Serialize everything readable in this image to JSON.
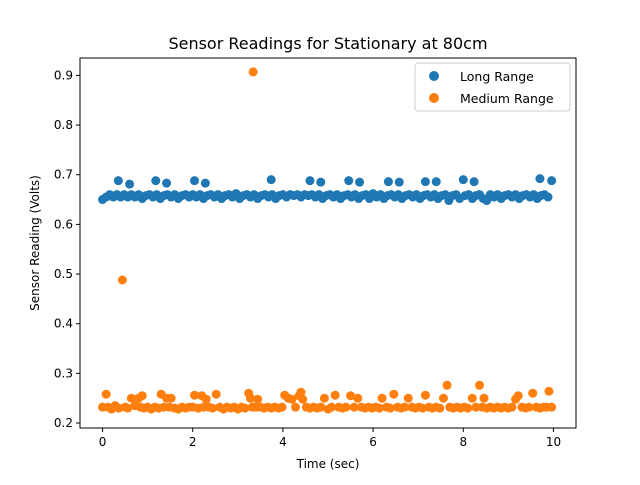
{
  "chart_data": {
    "type": "scatter",
    "title": "Sensor Readings for Stationary at 80cm",
    "xlabel": "Time (sec)",
    "ylabel": "Sensor Reading (Volts)",
    "xlim": [
      -0.5,
      10.5
    ],
    "ylim": [
      0.19,
      0.935
    ],
    "xticks": [
      0,
      2,
      4,
      6,
      8,
      10
    ],
    "yticks": [
      0.2,
      0.3,
      0.4,
      0.5,
      0.6,
      0.7,
      0.8,
      0.9
    ],
    "grid": false,
    "legend_position": "top-right",
    "series": [
      {
        "name": "Long Range",
        "color": "#1f77b4",
        "points": [
          [
            0.0,
            0.65
          ],
          [
            0.08,
            0.655
          ],
          [
            0.16,
            0.66
          ],
          [
            0.24,
            0.655
          ],
          [
            0.32,
            0.66
          ],
          [
            0.35,
            0.688
          ],
          [
            0.4,
            0.655
          ],
          [
            0.48,
            0.66
          ],
          [
            0.56,
            0.655
          ],
          [
            0.6,
            0.681
          ],
          [
            0.64,
            0.66
          ],
          [
            0.72,
            0.655
          ],
          [
            0.8,
            0.66
          ],
          [
            0.88,
            0.652
          ],
          [
            0.96,
            0.658
          ],
          [
            1.04,
            0.66
          ],
          [
            1.12,
            0.655
          ],
          [
            1.18,
            0.688
          ],
          [
            1.2,
            0.66
          ],
          [
            1.28,
            0.652
          ],
          [
            1.36,
            0.658
          ],
          [
            1.42,
            0.683
          ],
          [
            1.44,
            0.66
          ],
          [
            1.52,
            0.655
          ],
          [
            1.6,
            0.66
          ],
          [
            1.68,
            0.652
          ],
          [
            1.76,
            0.658
          ],
          [
            1.84,
            0.66
          ],
          [
            1.92,
            0.655
          ],
          [
            2.0,
            0.66
          ],
          [
            2.04,
            0.688
          ],
          [
            2.08,
            0.655
          ],
          [
            2.16,
            0.66
          ],
          [
            2.24,
            0.652
          ],
          [
            2.28,
            0.683
          ],
          [
            2.32,
            0.658
          ],
          [
            2.4,
            0.66
          ],
          [
            2.48,
            0.655
          ],
          [
            2.56,
            0.66
          ],
          [
            2.64,
            0.652
          ],
          [
            2.72,
            0.658
          ],
          [
            2.8,
            0.66
          ],
          [
            2.88,
            0.655
          ],
          [
            2.96,
            0.662
          ],
          [
            3.04,
            0.652
          ],
          [
            3.12,
            0.658
          ],
          [
            3.2,
            0.66
          ],
          [
            3.28,
            0.655
          ],
          [
            3.36,
            0.66
          ],
          [
            3.44,
            0.652
          ],
          [
            3.52,
            0.658
          ],
          [
            3.6,
            0.66
          ],
          [
            3.68,
            0.655
          ],
          [
            3.74,
            0.69
          ],
          [
            3.76,
            0.66
          ],
          [
            3.84,
            0.652
          ],
          [
            3.92,
            0.658
          ],
          [
            4.0,
            0.66
          ],
          [
            4.08,
            0.655
          ],
          [
            4.16,
            0.66
          ],
          [
            4.24,
            0.658
          ],
          [
            4.32,
            0.66
          ],
          [
            4.4,
            0.655
          ],
          [
            4.48,
            0.66
          ],
          [
            4.56,
            0.658
          ],
          [
            4.6,
            0.688
          ],
          [
            4.64,
            0.66
          ],
          [
            4.72,
            0.655
          ],
          [
            4.8,
            0.66
          ],
          [
            4.84,
            0.685
          ],
          [
            4.88,
            0.652
          ],
          [
            4.96,
            0.658
          ],
          [
            5.04,
            0.66
          ],
          [
            5.12,
            0.655
          ],
          [
            5.2,
            0.66
          ],
          [
            5.28,
            0.652
          ],
          [
            5.36,
            0.658
          ],
          [
            5.44,
            0.66
          ],
          [
            5.46,
            0.688
          ],
          [
            5.52,
            0.655
          ],
          [
            5.6,
            0.66
          ],
          [
            5.68,
            0.652
          ],
          [
            5.7,
            0.685
          ],
          [
            5.76,
            0.658
          ],
          [
            5.84,
            0.66
          ],
          [
            5.92,
            0.652
          ],
          [
            6.0,
            0.662
          ],
          [
            6.08,
            0.655
          ],
          [
            6.16,
            0.66
          ],
          [
            6.24,
            0.652
          ],
          [
            6.32,
            0.658
          ],
          [
            6.34,
            0.686
          ],
          [
            6.4,
            0.66
          ],
          [
            6.48,
            0.655
          ],
          [
            6.56,
            0.66
          ],
          [
            6.58,
            0.685
          ],
          [
            6.64,
            0.652
          ],
          [
            6.72,
            0.658
          ],
          [
            6.8,
            0.66
          ],
          [
            6.88,
            0.655
          ],
          [
            6.96,
            0.66
          ],
          [
            7.04,
            0.652
          ],
          [
            7.12,
            0.658
          ],
          [
            7.16,
            0.686
          ],
          [
            7.2,
            0.66
          ],
          [
            7.28,
            0.655
          ],
          [
            7.36,
            0.66
          ],
          [
            7.4,
            0.686
          ],
          [
            7.44,
            0.652
          ],
          [
            7.52,
            0.658
          ],
          [
            7.6,
            0.66
          ],
          [
            7.68,
            0.648
          ],
          [
            7.76,
            0.658
          ],
          [
            7.84,
            0.66
          ],
          [
            7.92,
            0.652
          ],
          [
            8.0,
            0.69
          ],
          [
            8.04,
            0.658
          ],
          [
            8.12,
            0.66
          ],
          [
            8.2,
            0.652
          ],
          [
            8.24,
            0.686
          ],
          [
            8.28,
            0.658
          ],
          [
            8.36,
            0.66
          ],
          [
            8.44,
            0.652
          ],
          [
            8.52,
            0.648
          ],
          [
            8.6,
            0.66
          ],
          [
            8.68,
            0.655
          ],
          [
            8.76,
            0.66
          ],
          [
            8.84,
            0.652
          ],
          [
            8.92,
            0.658
          ],
          [
            9.0,
            0.66
          ],
          [
            9.08,
            0.655
          ],
          [
            9.16,
            0.66
          ],
          [
            9.24,
            0.652
          ],
          [
            9.32,
            0.658
          ],
          [
            9.4,
            0.66
          ],
          [
            9.48,
            0.655
          ],
          [
            9.56,
            0.66
          ],
          [
            9.64,
            0.652
          ],
          [
            9.7,
            0.692
          ],
          [
            9.72,
            0.658
          ],
          [
            9.8,
            0.66
          ],
          [
            9.88,
            0.655
          ],
          [
            9.96,
            0.688
          ]
        ]
      },
      {
        "name": "Medium Range",
        "color": "#ff7f0e",
        "points": [
          [
            0.0,
            0.232
          ],
          [
            0.08,
            0.258
          ],
          [
            0.12,
            0.232
          ],
          [
            0.2,
            0.228
          ],
          [
            0.28,
            0.235
          ],
          [
            0.36,
            0.23
          ],
          [
            0.44,
            0.488
          ],
          [
            0.5,
            0.232
          ],
          [
            0.56,
            0.23
          ],
          [
            0.64,
            0.25
          ],
          [
            0.72,
            0.235
          ],
          [
            0.8,
            0.25
          ],
          [
            0.84,
            0.232
          ],
          [
            0.88,
            0.255
          ],
          [
            0.92,
            0.23
          ],
          [
            1.0,
            0.232
          ],
          [
            1.08,
            0.228
          ],
          [
            1.16,
            0.232
          ],
          [
            1.24,
            0.23
          ],
          [
            1.3,
            0.258
          ],
          [
            1.36,
            0.232
          ],
          [
            1.42,
            0.25
          ],
          [
            1.48,
            0.232
          ],
          [
            1.52,
            0.25
          ],
          [
            1.6,
            0.23
          ],
          [
            1.68,
            0.228
          ],
          [
            1.76,
            0.232
          ],
          [
            1.84,
            0.23
          ],
          [
            1.92,
            0.232
          ],
          [
            2.0,
            0.232
          ],
          [
            2.04,
            0.256
          ],
          [
            2.12,
            0.23
          ],
          [
            2.2,
            0.255
          ],
          [
            2.24,
            0.232
          ],
          [
            2.3,
            0.248
          ],
          [
            2.36,
            0.232
          ],
          [
            2.44,
            0.23
          ],
          [
            2.52,
            0.258
          ],
          [
            2.6,
            0.232
          ],
          [
            2.68,
            0.228
          ],
          [
            2.76,
            0.232
          ],
          [
            2.84,
            0.23
          ],
          [
            2.92,
            0.232
          ],
          [
            3.0,
            0.228
          ],
          [
            3.08,
            0.232
          ],
          [
            3.16,
            0.23
          ],
          [
            3.24,
            0.26
          ],
          [
            3.28,
            0.25
          ],
          [
            3.32,
            0.232
          ],
          [
            3.34,
            0.907
          ],
          [
            3.4,
            0.232
          ],
          [
            3.44,
            0.248
          ],
          [
            3.5,
            0.232
          ],
          [
            3.58,
            0.23
          ],
          [
            3.66,
            0.232
          ],
          [
            3.74,
            0.23
          ],
          [
            3.82,
            0.232
          ],
          [
            3.9,
            0.23
          ],
          [
            3.98,
            0.232
          ],
          [
            4.04,
            0.256
          ],
          [
            4.12,
            0.25
          ],
          [
            4.2,
            0.248
          ],
          [
            4.28,
            0.232
          ],
          [
            4.36,
            0.255
          ],
          [
            4.4,
            0.262
          ],
          [
            4.44,
            0.248
          ],
          [
            4.52,
            0.232
          ],
          [
            4.6,
            0.23
          ],
          [
            4.68,
            0.232
          ],
          [
            4.76,
            0.23
          ],
          [
            4.84,
            0.232
          ],
          [
            4.92,
            0.25
          ],
          [
            5.0,
            0.228
          ],
          [
            5.08,
            0.232
          ],
          [
            5.16,
            0.256
          ],
          [
            5.24,
            0.232
          ],
          [
            5.32,
            0.23
          ],
          [
            5.4,
            0.232
          ],
          [
            5.5,
            0.255
          ],
          [
            5.58,
            0.232
          ],
          [
            5.66,
            0.25
          ],
          [
            5.74,
            0.232
          ],
          [
            5.82,
            0.23
          ],
          [
            5.9,
            0.232
          ],
          [
            5.98,
            0.23
          ],
          [
            6.06,
            0.232
          ],
          [
            6.14,
            0.23
          ],
          [
            6.2,
            0.25
          ],
          [
            6.3,
            0.232
          ],
          [
            6.38,
            0.23
          ],
          [
            6.46,
            0.258
          ],
          [
            6.54,
            0.232
          ],
          [
            6.62,
            0.23
          ],
          [
            6.7,
            0.232
          ],
          [
            6.78,
            0.25
          ],
          [
            6.86,
            0.232
          ],
          [
            6.94,
            0.23
          ],
          [
            7.02,
            0.232
          ],
          [
            7.1,
            0.23
          ],
          [
            7.16,
            0.256
          ],
          [
            7.24,
            0.232
          ],
          [
            7.32,
            0.23
          ],
          [
            7.4,
            0.232
          ],
          [
            7.48,
            0.23
          ],
          [
            7.56,
            0.25
          ],
          [
            7.64,
            0.276
          ],
          [
            7.7,
            0.232
          ],
          [
            7.78,
            0.23
          ],
          [
            7.86,
            0.232
          ],
          [
            7.94,
            0.23
          ],
          [
            8.02,
            0.232
          ],
          [
            8.1,
            0.23
          ],
          [
            8.2,
            0.25
          ],
          [
            8.28,
            0.232
          ],
          [
            8.36,
            0.276
          ],
          [
            8.42,
            0.232
          ],
          [
            8.46,
            0.25
          ],
          [
            8.52,
            0.23
          ],
          [
            8.6,
            0.232
          ],
          [
            8.68,
            0.23
          ],
          [
            8.76,
            0.232
          ],
          [
            8.84,
            0.23
          ],
          [
            8.92,
            0.232
          ],
          [
            9.0,
            0.23
          ],
          [
            9.08,
            0.232
          ],
          [
            9.16,
            0.248
          ],
          [
            9.22,
            0.255
          ],
          [
            9.3,
            0.232
          ],
          [
            9.38,
            0.23
          ],
          [
            9.46,
            0.232
          ],
          [
            9.54,
            0.26
          ],
          [
            9.62,
            0.232
          ],
          [
            9.7,
            0.23
          ],
          [
            9.78,
            0.232
          ],
          [
            9.84,
            0.232
          ],
          [
            9.9,
            0.264
          ],
          [
            9.96,
            0.232
          ]
        ]
      }
    ]
  }
}
